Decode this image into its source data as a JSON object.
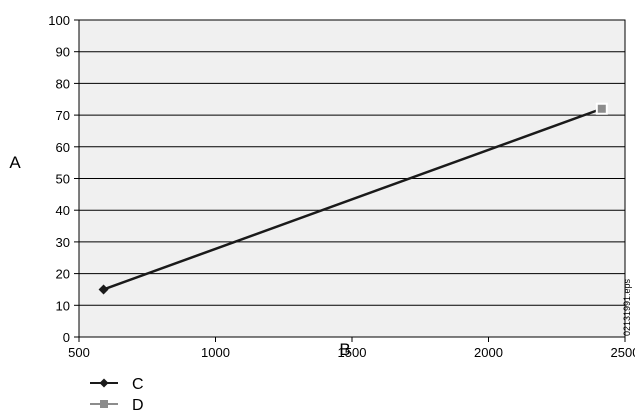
{
  "chart_data": {
    "type": "line",
    "xlabel": "B",
    "ylabel": "A",
    "xlim": [
      500,
      2500
    ],
    "ylim": [
      0,
      100
    ],
    "x_ticks": [
      500,
      1000,
      1500,
      2000,
      2500
    ],
    "y_ticks": [
      0,
      10,
      20,
      30,
      40,
      50,
      60,
      70,
      80,
      90,
      100
    ],
    "grid": "horizontal",
    "legend_position": "bottom-left",
    "series": [
      {
        "name": "C",
        "marker": "diamond",
        "color": "#1a1a1a",
        "points": [
          {
            "x": 590,
            "y": 15
          }
        ]
      },
      {
        "name": "D",
        "marker": "square",
        "color": "#8c8c8c",
        "points": [
          {
            "x": 2415,
            "y": 72
          }
        ]
      }
    ],
    "line": {
      "color": "#1a1a1a",
      "from": {
        "x": 590,
        "y": 15
      },
      "to": {
        "x": 2415,
        "y": 72
      }
    },
    "side_label": "02131991.eps"
  }
}
